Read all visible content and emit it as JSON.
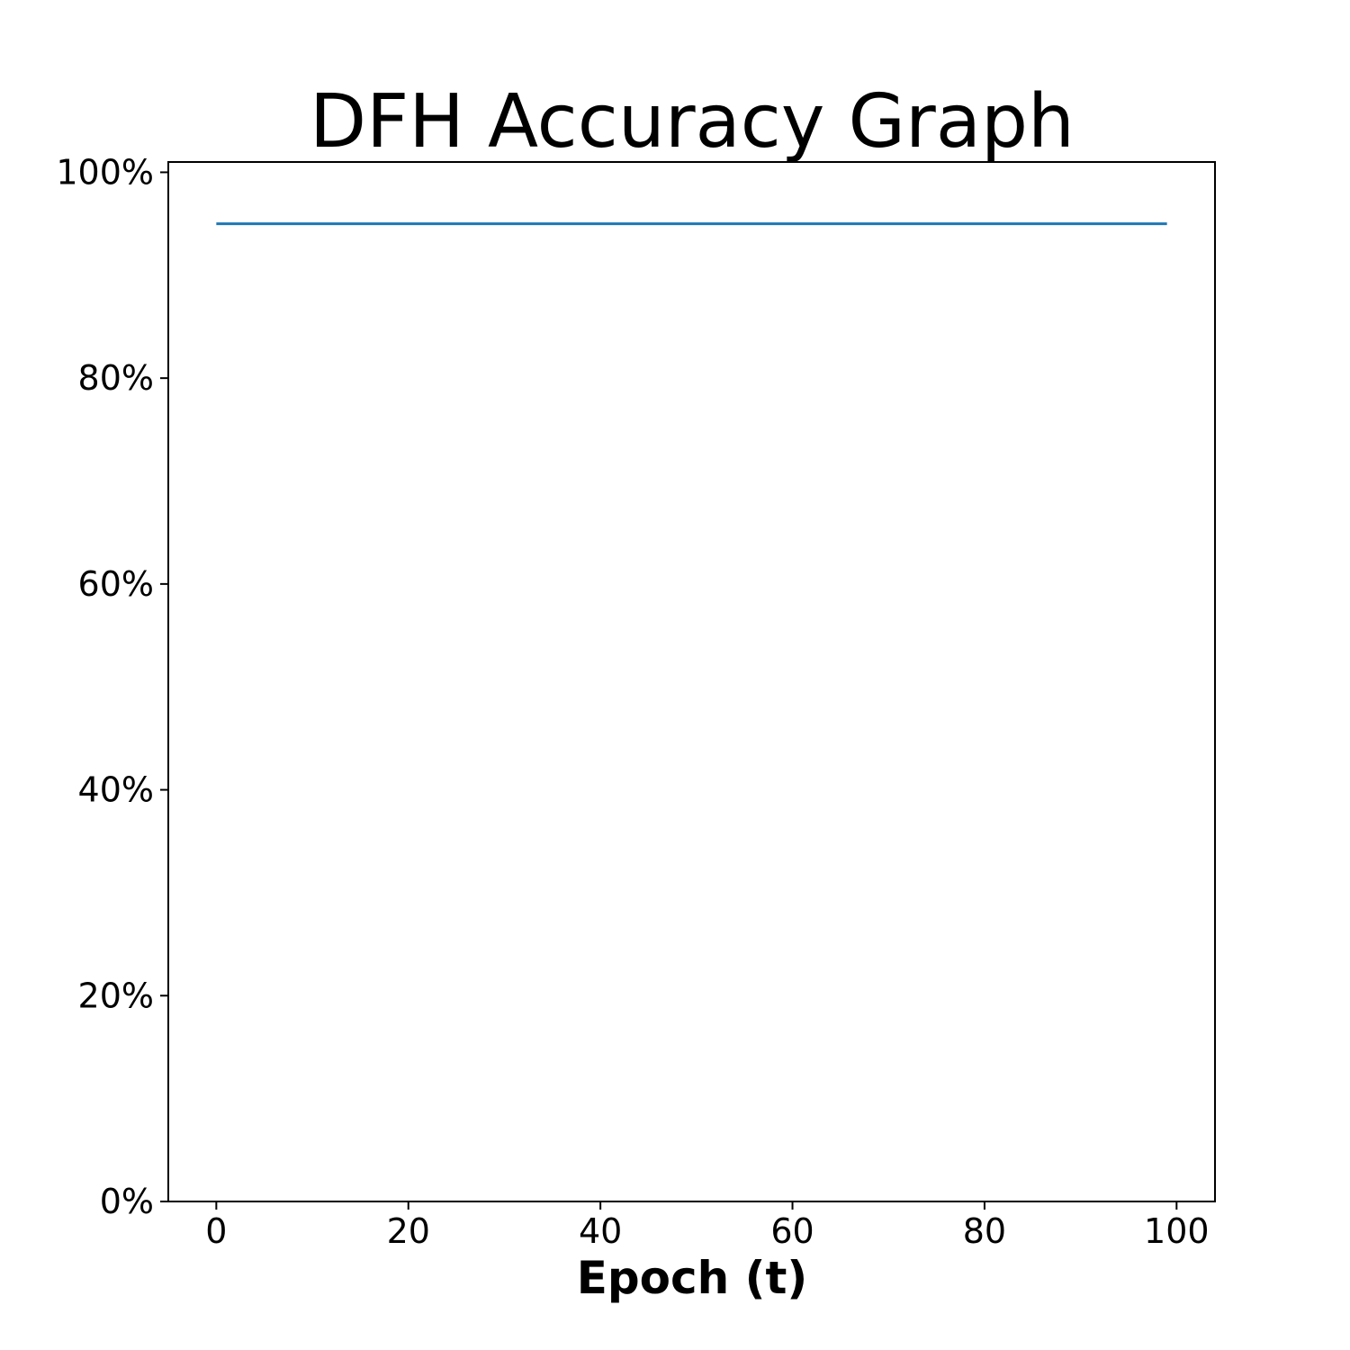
{
  "chart_data": {
    "type": "line",
    "title": "DFH Accuracy Graph",
    "xlabel": "Epoch (t)",
    "ylabel": "",
    "xlim": [
      -5,
      104
    ],
    "ylim": [
      0,
      1.01
    ],
    "x_ticks": [
      0,
      20,
      40,
      60,
      80,
      100
    ],
    "x_tick_labels": [
      "0",
      "20",
      "40",
      "60",
      "80",
      "100"
    ],
    "y_ticks": [
      0,
      0.2,
      0.4,
      0.6,
      0.8,
      1.0
    ],
    "y_tick_labels": [
      "0%",
      "20%",
      "40%",
      "60%",
      "80%",
      "100%"
    ],
    "grid": false,
    "series": [
      {
        "color": "#1f77b4",
        "x": [
          0,
          99
        ],
        "y": [
          0.95,
          0.95
        ]
      }
    ]
  }
}
